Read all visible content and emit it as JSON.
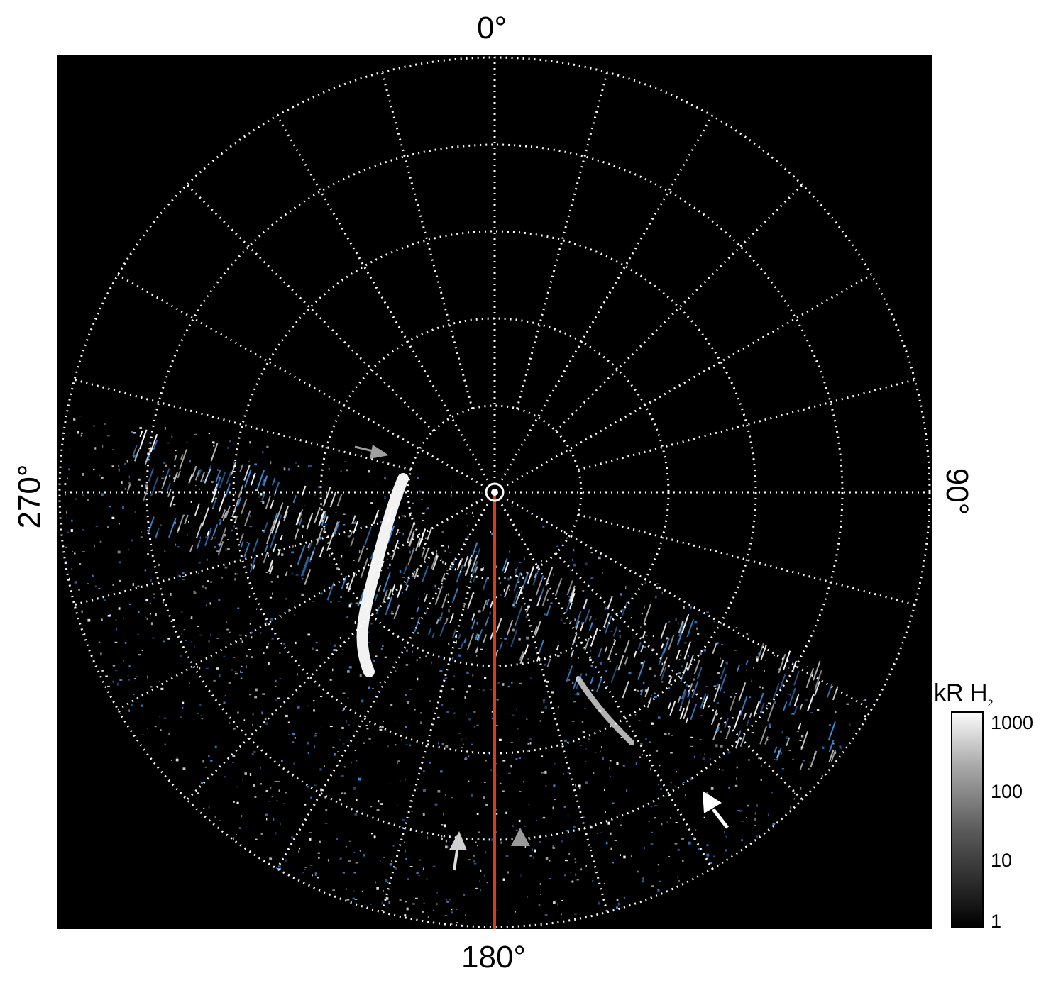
{
  "labels": {
    "top": "0°",
    "bottom": "180°",
    "left": "270°",
    "right": "90°"
  },
  "colorbar": {
    "title": "kR H",
    "title_subscript": "2",
    "ticks": [
      "1000",
      "100",
      "10",
      "1"
    ]
  },
  "colors": {
    "background": "#000000",
    "grid": "#ffffff",
    "meridian_line": "#e03a12",
    "emission_white": "#ffffff",
    "emission_blue": "#3c8fe0",
    "arrow_grey": "#a0a0a0",
    "arrow_white": "#ffffff"
  }
}
